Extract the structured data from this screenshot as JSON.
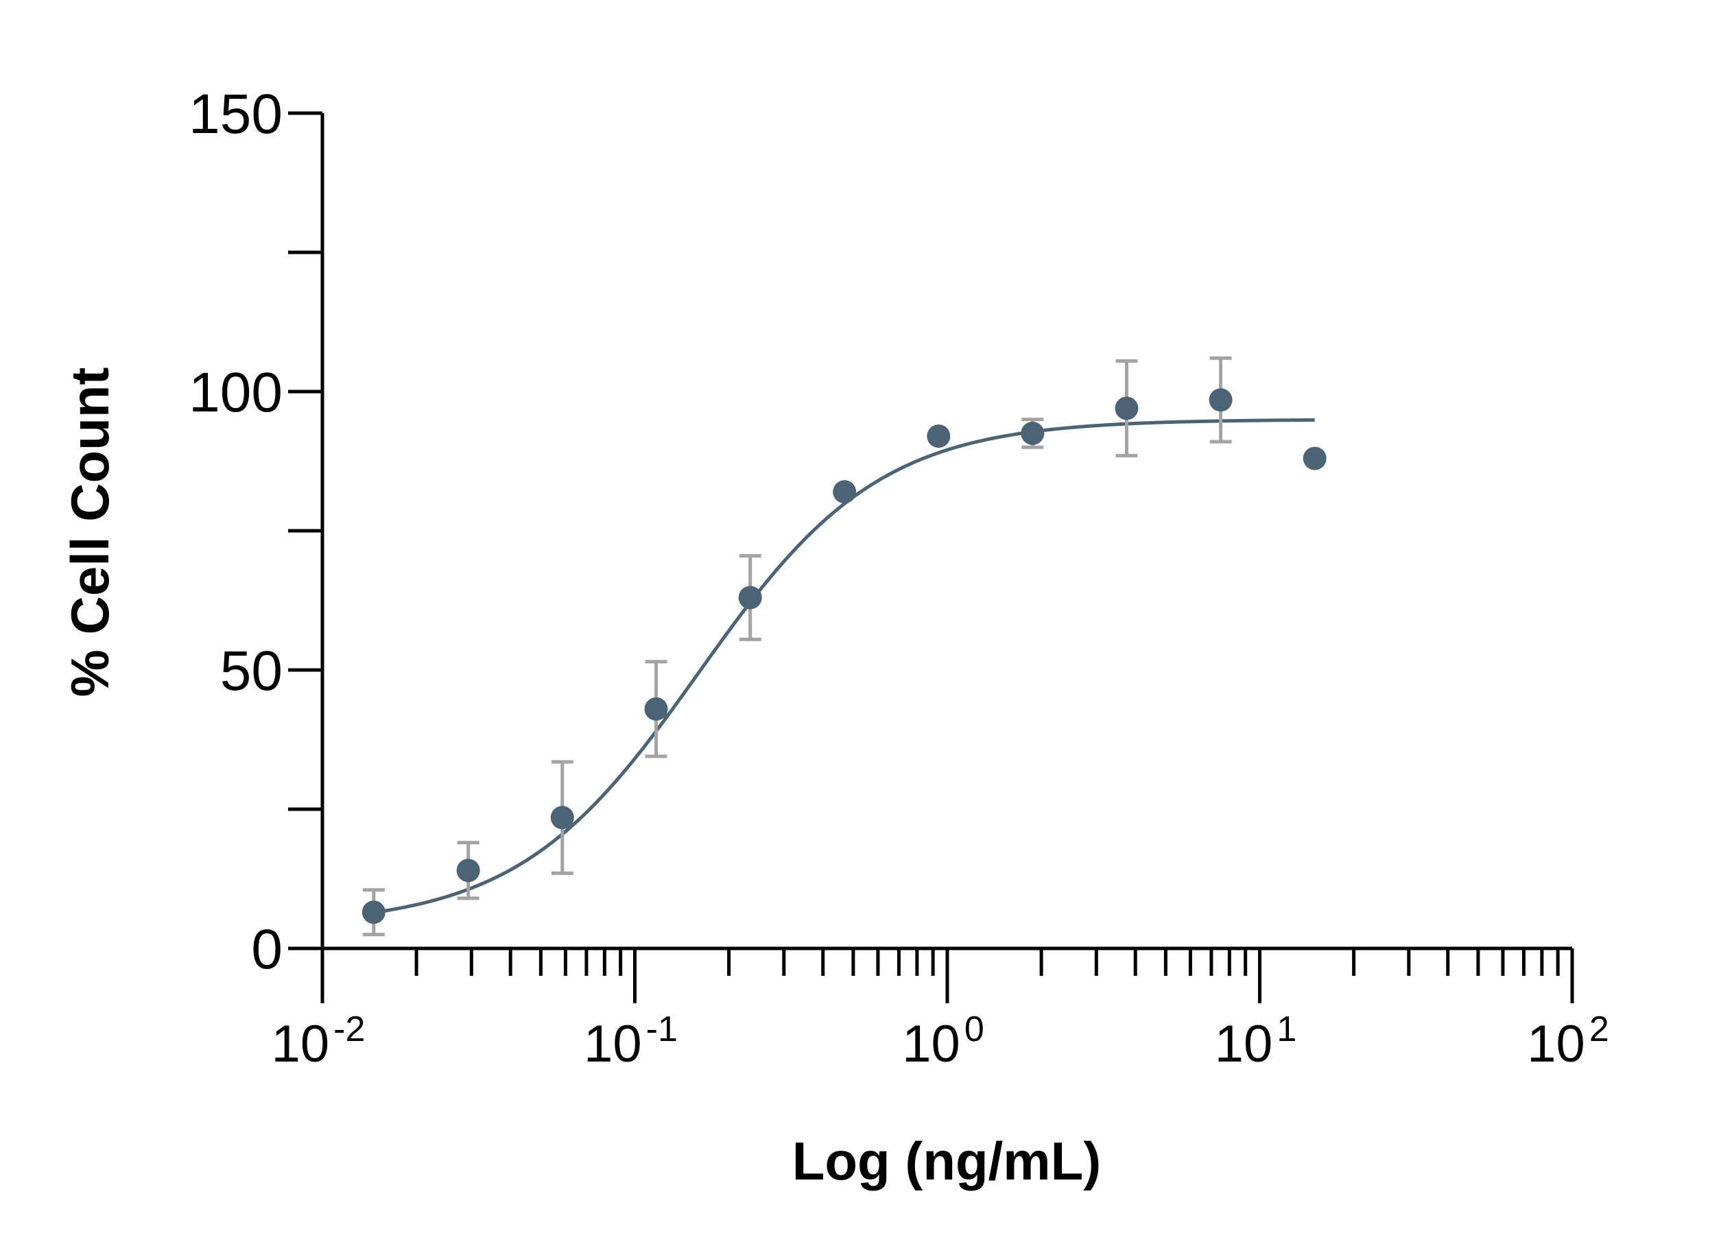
{
  "chart_data": {
    "type": "scatter",
    "title": "",
    "xlabel": "Log (ng/mL)",
    "ylabel": "% Cell Count",
    "xscale": "log",
    "xlim": [
      0.01,
      100
    ],
    "ylim": [
      0,
      150
    ],
    "yticks": [
      {
        "value": 0,
        "label": "0"
      },
      {
        "value": 50,
        "label": "50"
      },
      {
        "value": 100,
        "label": "100"
      },
      {
        "value": 150,
        "label": "150"
      }
    ],
    "yminor_ticks": [
      25,
      75,
      125
    ],
    "xticks": [
      {
        "value": 0.01,
        "base": "10",
        "exp": "-2"
      },
      {
        "value": 0.1,
        "base": "10",
        "exp": "-1"
      },
      {
        "value": 1,
        "base": "10",
        "exp": "0"
      },
      {
        "value": 10,
        "base": "10",
        "exp": "1"
      },
      {
        "value": 100,
        "base": "10",
        "exp": "2"
      }
    ],
    "grid": false,
    "legend": "none",
    "colors": {
      "points": "#4a6476",
      "fit": "#4a6476",
      "errorbars": "#a3a3a3",
      "axes": "#000000"
    },
    "series": [
      {
        "x": [
          0.0146,
          0.0293,
          0.0586,
          0.117,
          0.234,
          0.469,
          0.938,
          1.875,
          3.75,
          7.5,
          15
        ],
        "y": [
          6.5,
          14,
          23.5,
          43,
          63,
          82,
          92,
          92.5,
          97,
          98.5,
          88
        ],
        "err": [
          4,
          5,
          10,
          8.5,
          7.5,
          0,
          0,
          2.5,
          8.5,
          7.5,
          0
        ]
      }
    ],
    "fit": {
      "model": "4PL",
      "bottom": 4,
      "top": 95,
      "ec50": 0.16,
      "hill": 1.5,
      "x_range": [
        0.0146,
        15
      ]
    }
  }
}
